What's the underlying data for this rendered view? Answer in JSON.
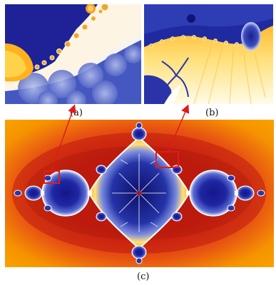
{
  "figure": {
    "panels": [
      {
        "id": "a",
        "caption": "(a)"
      },
      {
        "id": "b",
        "caption": "(b)"
      },
      {
        "id": "c",
        "caption": "(c)"
      }
    ],
    "colors": {
      "outer_orange": "#f59a00",
      "band_red": "#c81e12",
      "deep_blue": "#1a1c8c",
      "mid_blue": "#4d5fc4",
      "light_blue": "#a6b4e8",
      "yellow": "#ffd23a",
      "highlight_box": "#e11b1b",
      "arrow": "#e11b1b"
    }
  }
}
